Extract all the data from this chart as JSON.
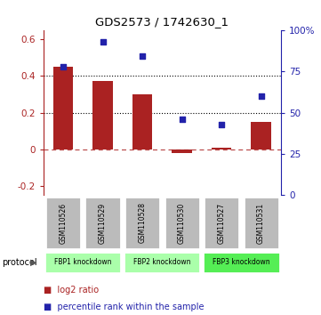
{
  "title": "GDS2573 / 1742630_1",
  "samples": [
    "GSM110526",
    "GSM110529",
    "GSM110528",
    "GSM110530",
    "GSM110527",
    "GSM110531"
  ],
  "log2_ratio": [
    0.45,
    0.37,
    0.3,
    -0.02,
    0.01,
    0.15
  ],
  "percentile_rank": [
    78,
    93,
    84,
    46,
    43,
    60
  ],
  "bar_color": "#aa2222",
  "dot_color": "#2222aa",
  "ylim_left": [
    -0.25,
    0.65
  ],
  "ylim_right": [
    0,
    100
  ],
  "yticks_left": [
    -0.2,
    0.0,
    0.2,
    0.4,
    0.6
  ],
  "yticks_right": [
    0,
    25,
    50,
    75,
    100
  ],
  "ytick_labels_left": [
    "-0.2",
    "0",
    "0.2",
    "0.4",
    "0.6"
  ],
  "ytick_labels_right": [
    "0",
    "25",
    "50",
    "75",
    "100%"
  ],
  "hlines_dotted": [
    0.2,
    0.4
  ],
  "hline_dashed_val": 0.0,
  "groups": [
    {
      "label": "FBP1 knockdown",
      "start": 0,
      "end": 2,
      "color": "#aaffaa"
    },
    {
      "label": "FBP2 knockdown",
      "start": 2,
      "end": 4,
      "color": "#aaffaa"
    },
    {
      "label": "FBP3 knockdown",
      "start": 4,
      "end": 6,
      "color": "#55ee55"
    }
  ],
  "legend_items": [
    {
      "label": "log2 ratio",
      "color": "#aa2222"
    },
    {
      "label": "percentile rank within the sample",
      "color": "#2222aa"
    }
  ],
  "protocol_label": "protocol",
  "background_color": "#ffffff",
  "sample_box_color": "#bbbbbb",
  "bar_width": 0.5
}
